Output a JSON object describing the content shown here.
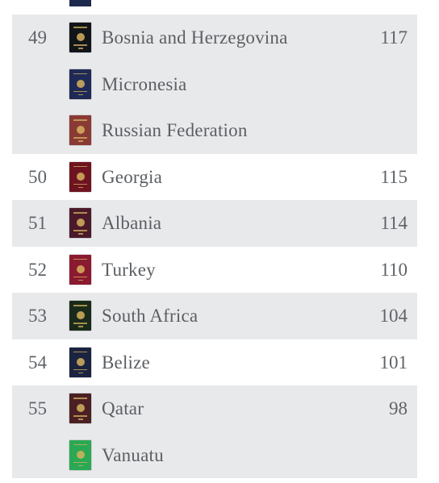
{
  "groups": [
    {
      "rank": "49",
      "score": "117",
      "shaded": true,
      "countries": [
        {
          "name": "Bosnia and Herzegovina",
          "passport_color": "#111418",
          "icon": "bosnia-passport-icon"
        },
        {
          "name": "Micronesia",
          "passport_color": "#1e2a55",
          "icon": "micronesia-passport-icon"
        },
        {
          "name": "Russian Federation",
          "passport_color": "#8a3a34",
          "icon": "russia-passport-icon"
        }
      ]
    },
    {
      "rank": "50",
      "score": "115",
      "shaded": false,
      "countries": [
        {
          "name": "Georgia",
          "passport_color": "#6e1420",
          "icon": "georgia-passport-icon"
        }
      ]
    },
    {
      "rank": "51",
      "score": "114",
      "shaded": true,
      "countries": [
        {
          "name": "Albania",
          "passport_color": "#4a1a2a",
          "icon": "albania-passport-icon"
        }
      ]
    },
    {
      "rank": "52",
      "score": "110",
      "shaded": false,
      "countries": [
        {
          "name": "Turkey",
          "passport_color": "#8a1a30",
          "icon": "turkey-passport-icon"
        }
      ]
    },
    {
      "rank": "53",
      "score": "104",
      "shaded": true,
      "countries": [
        {
          "name": "South Africa",
          "passport_color": "#1a2a1a",
          "icon": "south-africa-passport-icon"
        }
      ]
    },
    {
      "rank": "54",
      "score": "101",
      "shaded": false,
      "countries": [
        {
          "name": "Belize",
          "passport_color": "#1a2440",
          "icon": "belize-passport-icon"
        }
      ]
    },
    {
      "rank": "55",
      "score": "98",
      "shaded": true,
      "countries": [
        {
          "name": "Qatar",
          "passport_color": "#4a2024",
          "icon": "qatar-passport-icon"
        },
        {
          "name": "Vanuatu",
          "passport_color": "#2aa854",
          "icon": "vanuatu-passport-icon"
        }
      ]
    }
  ]
}
